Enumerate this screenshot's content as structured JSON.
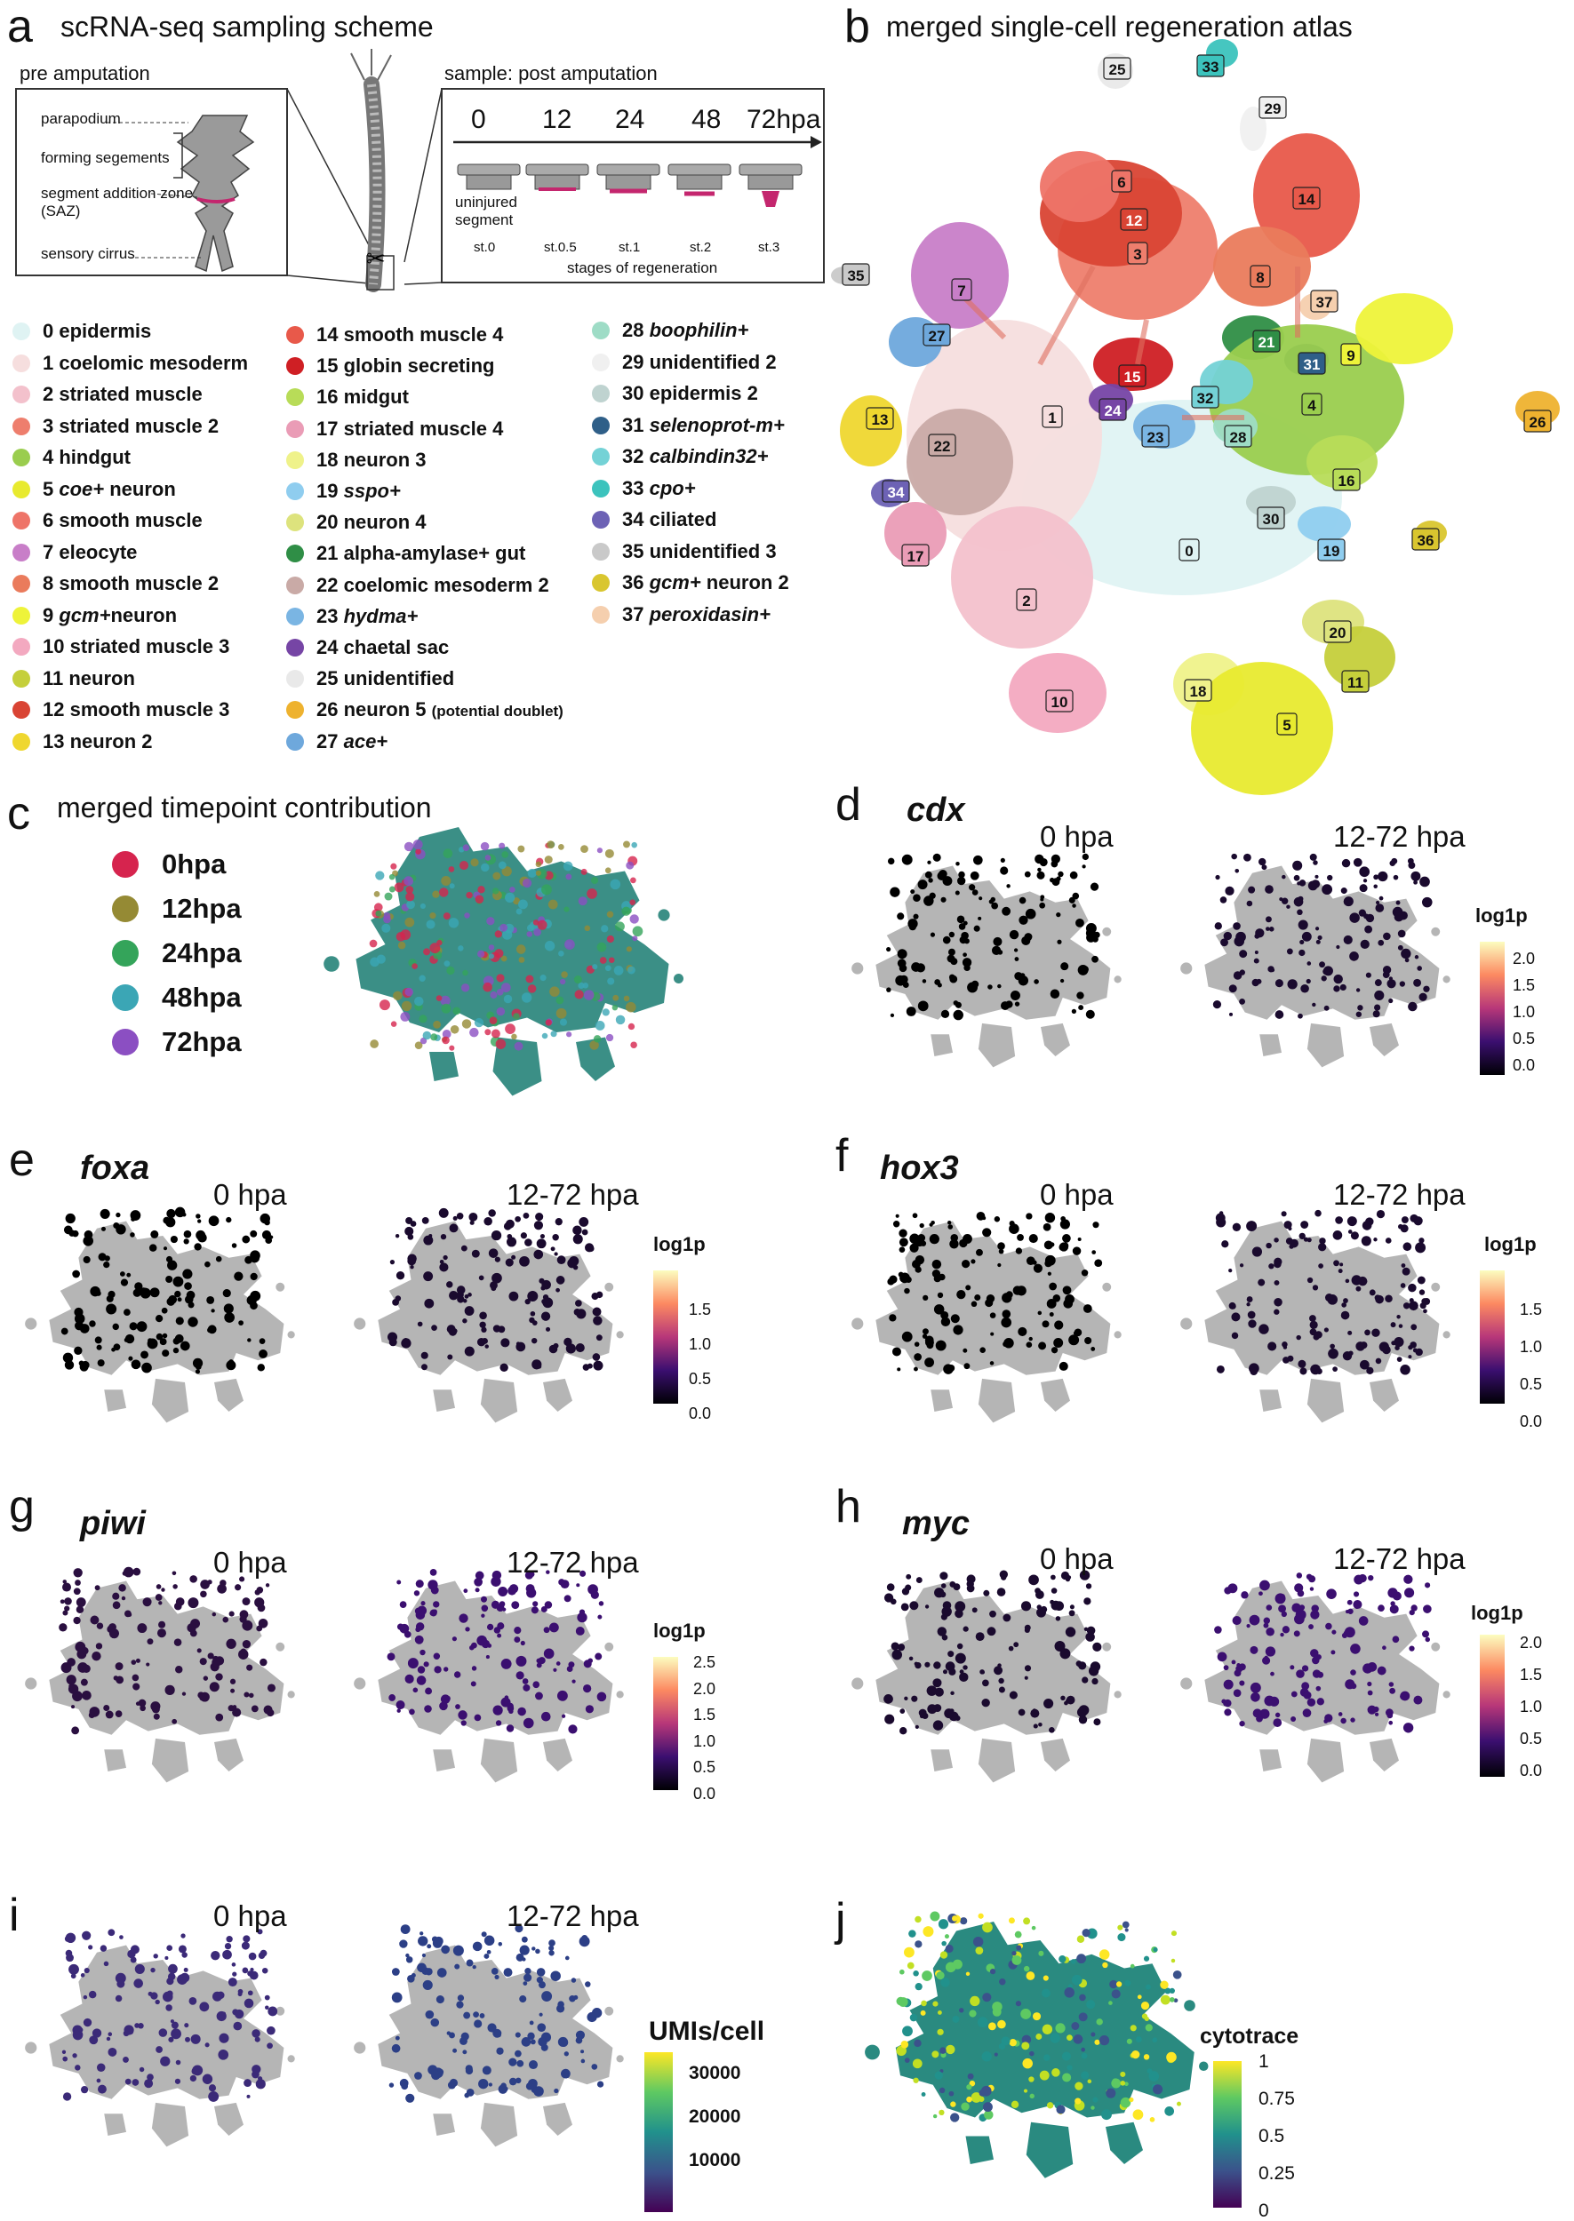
{
  "panel_a": {
    "label": "a",
    "title": "scRNA-seq sampling scheme",
    "pre_amputation": "pre amputation",
    "parapodium": "parapodium",
    "forming_segments": "forming segements",
    "saz_line1": "segment addition zone",
    "saz_line2": "(SAZ)",
    "sensory_cirrus": "sensory cirrus",
    "post_title": "sample: post amputation",
    "timepoints": [
      "0",
      "12",
      "24",
      "48",
      "72hpa"
    ],
    "uninjured_line1": "uninjured",
    "uninjured_line2": "segment",
    "stages": [
      "st.0",
      "st.0.5",
      "st.1",
      "st.2",
      "st.3"
    ],
    "stages_caption": "stages of regeneration"
  },
  "legend": {
    "col1": [
      {
        "num": "0",
        "name": "epidermis",
        "italic": "",
        "suffix": "",
        "color": "#dff3f3"
      },
      {
        "num": "1",
        "name": "coelomic mesoderm",
        "italic": "",
        "suffix": "",
        "color": "#f6dede"
      },
      {
        "num": "2",
        "name": "striated muscle",
        "italic": "",
        "suffix": "",
        "color": "#f3c1cc"
      },
      {
        "num": "3",
        "name": "striated muscle 2",
        "italic": "",
        "suffix": "",
        "color": "#ee7e6d"
      },
      {
        "num": "4",
        "name": "hindgut",
        "italic": "",
        "suffix": "",
        "color": "#9acd4e"
      },
      {
        "num": "5",
        "name": "",
        "italic": "coe+",
        "suffix": " neuron",
        "color": "#e8ea2f"
      },
      {
        "num": "6",
        "name": "smooth muscle",
        "italic": "",
        "suffix": "",
        "color": "#ee7468"
      },
      {
        "num": "7",
        "name": "eleocyte",
        "italic": "",
        "suffix": "",
        "color": "#c87ec8"
      },
      {
        "num": "8",
        "name": "smooth muscle 2",
        "italic": "",
        "suffix": "",
        "color": "#ea7b5c"
      },
      {
        "num": "9",
        "name": "",
        "italic": "gcm+",
        "suffix": "neuron",
        "color": "#eef33a"
      },
      {
        "num": "10",
        "name": "striated muscle 3",
        "italic": "",
        "suffix": "",
        "color": "#f3a9c0"
      },
      {
        "num": "11",
        "name": "neuron",
        "italic": "",
        "suffix": "",
        "color": "#c5cf3b"
      },
      {
        "num": "12",
        "name": "smooth muscle 3",
        "italic": "",
        "suffix": "",
        "color": "#d94434"
      },
      {
        "num": "13",
        "name": "neuron 2",
        "italic": "",
        "suffix": "",
        "color": "#efd72f"
      }
    ],
    "col2": [
      {
        "num": "14",
        "name": "smooth muscle 4",
        "italic": "",
        "suffix": "",
        "color": "#e8594a"
      },
      {
        "num": "15",
        "name": "globin secreting",
        "italic": "",
        "suffix": "",
        "color": "#cf1f24"
      },
      {
        "num": "16",
        "name": "midgut",
        "italic": "",
        "suffix": "",
        "color": "#b8dc58"
      },
      {
        "num": "17",
        "name": "striated muscle 4",
        "italic": "",
        "suffix": "",
        "color": "#ea9cb6"
      },
      {
        "num": "18",
        "name": "neuron 3",
        "italic": "",
        "suffix": "",
        "color": "#eff28a"
      },
      {
        "num": "19",
        "name": "",
        "italic": "sspo+",
        "suffix": "",
        "color": "#8fcdef"
      },
      {
        "num": "20",
        "name": "neuron 4",
        "italic": "",
        "suffix": "",
        "color": "#dde37d"
      },
      {
        "num": "21",
        "name": "alpha-amylase+ gut",
        "italic": "",
        "suffix": "",
        "color": "#2f8e46"
      },
      {
        "num": "22",
        "name": "coelomic mesoderm 2",
        "italic": "",
        "suffix": "",
        "color": "#c9aaa6"
      },
      {
        "num": "23",
        "name": "",
        "italic": "hydma+",
        "suffix": "",
        "color": "#7ab5e3"
      },
      {
        "num": "24",
        "name": "chaetal sac",
        "italic": "",
        "suffix": "",
        "color": "#7645a5"
      },
      {
        "num": "25",
        "name": "unidentified",
        "italic": "",
        "suffix": "",
        "color": "#e9e9e9"
      },
      {
        "num": "26",
        "name": "neuron 5 ",
        "italic": "",
        "suffix": "(potential doublet)",
        "color": "#eeb22f"
      },
      {
        "num": "27",
        "name": "",
        "italic": "ace+",
        "suffix": "",
        "color": "#6ea8dc"
      }
    ],
    "col3": [
      {
        "num": "28",
        "name": "",
        "italic": "boophilin+",
        "suffix": "",
        "color": "#9edcc6"
      },
      {
        "num": "29",
        "name": "unidentified 2",
        "italic": "",
        "suffix": "",
        "color": "#f0f0f0"
      },
      {
        "num": "30",
        "name": "epidermis 2",
        "italic": "",
        "suffix": "",
        "color": "#bfd3d0"
      },
      {
        "num": "31",
        "name": "",
        "italic": "selenoprot-m+",
        "suffix": "",
        "color": "#2f5f88"
      },
      {
        "num": "32",
        "name": "",
        "italic": "calbindin32+",
        "suffix": "",
        "color": "#74d2d6"
      },
      {
        "num": "33",
        "name": "",
        "italic": "cpo+",
        "suffix": "",
        "color": "#3cc3bd"
      },
      {
        "num": "34",
        "name": "ciliated",
        "italic": "",
        "suffix": "",
        "color": "#6d62b5"
      },
      {
        "num": "35",
        "name": "unidentified 3",
        "italic": "",
        "suffix": "",
        "color": "#c9c9c9"
      },
      {
        "num": "36",
        "name": "",
        "italic": "gcm+",
        "suffix": " neuron 2",
        "color": "#d9c62f"
      },
      {
        "num": "37",
        "name": "",
        "italic": "peroxidasin+",
        "suffix": "",
        "color": "#f5cfae"
      }
    ]
  },
  "panel_b": {
    "label": "b",
    "title": "merged single-cell regeneration atlas",
    "cluster_labels": [
      "25",
      "33",
      "29",
      "6",
      "12",
      "14",
      "3",
      "8",
      "35",
      "7",
      "37",
      "27",
      "21",
      "9",
      "31",
      "15",
      "32",
      "4",
      "24",
      "13",
      "23",
      "28",
      "26",
      "1",
      "22",
      "16",
      "34",
      "30",
      "0",
      "36",
      "19",
      "17",
      "2",
      "20",
      "10",
      "18",
      "11",
      "5"
    ]
  },
  "panel_c": {
    "label": "c",
    "title": "merged timepoint contribution",
    "legend": [
      {
        "label": "0hpa",
        "color": "#d6244e"
      },
      {
        "label": "12hpa",
        "color": "#958a34"
      },
      {
        "label": "24hpa",
        "color": "#34a45a"
      },
      {
        "label": "48hpa",
        "color": "#3ba6b5"
      },
      {
        "label": "72hpa",
        "color": "#8b4fc2"
      }
    ]
  },
  "gene_panels": {
    "d": {
      "label": "d",
      "gene": "cdx",
      "left": "0 hpa",
      "right": "12-72 hpa",
      "scale_title": "log1p",
      "ticks": [
        "2.0",
        "1.5",
        "1.0",
        "0.5",
        "0.0"
      ]
    },
    "e": {
      "label": "e",
      "gene": "foxa",
      "left": "0 hpa",
      "right": "12-72 hpa",
      "scale_title": "log1p",
      "ticks": [
        "1.5",
        "1.0",
        "0.5",
        "0.0"
      ]
    },
    "f": {
      "label": "f",
      "gene": "hox3",
      "left": "0 hpa",
      "right": "12-72 hpa",
      "scale_title": "log1p",
      "ticks": [
        "1.5",
        "1.0",
        "0.5",
        "0.0"
      ]
    },
    "g": {
      "label": "g",
      "gene": "piwi",
      "left": "0 hpa",
      "right": "12-72 hpa",
      "scale_title": "log1p",
      "ticks": [
        "2.5",
        "2.0",
        "1.5",
        "1.0",
        "0.5",
        "0.0"
      ]
    },
    "h": {
      "label": "h",
      "gene": "myc",
      "left": "0 hpa",
      "right": "12-72 hpa",
      "scale_title": "log1p",
      "ticks": [
        "2.0",
        "1.5",
        "1.0",
        "0.5",
        "0.0"
      ]
    },
    "i": {
      "label": "i",
      "gene": "",
      "left": "0 hpa",
      "right": "12-72 hpa",
      "scale_title": "UMIs/cell",
      "ticks": [
        "30000",
        "20000",
        "10000"
      ]
    }
  },
  "panel_j": {
    "label": "j",
    "scale_title": "cytotrace",
    "ticks": [
      "1",
      "0.75",
      "0.5",
      "0.25",
      "0"
    ]
  },
  "colors": {
    "magma_low": "#000004",
    "magma_mid": "#b73779",
    "magma_high": "#fcfdbf",
    "viridis_low": "#440154",
    "viridis_mid": "#21918c",
    "viridis_high": "#fde725"
  }
}
